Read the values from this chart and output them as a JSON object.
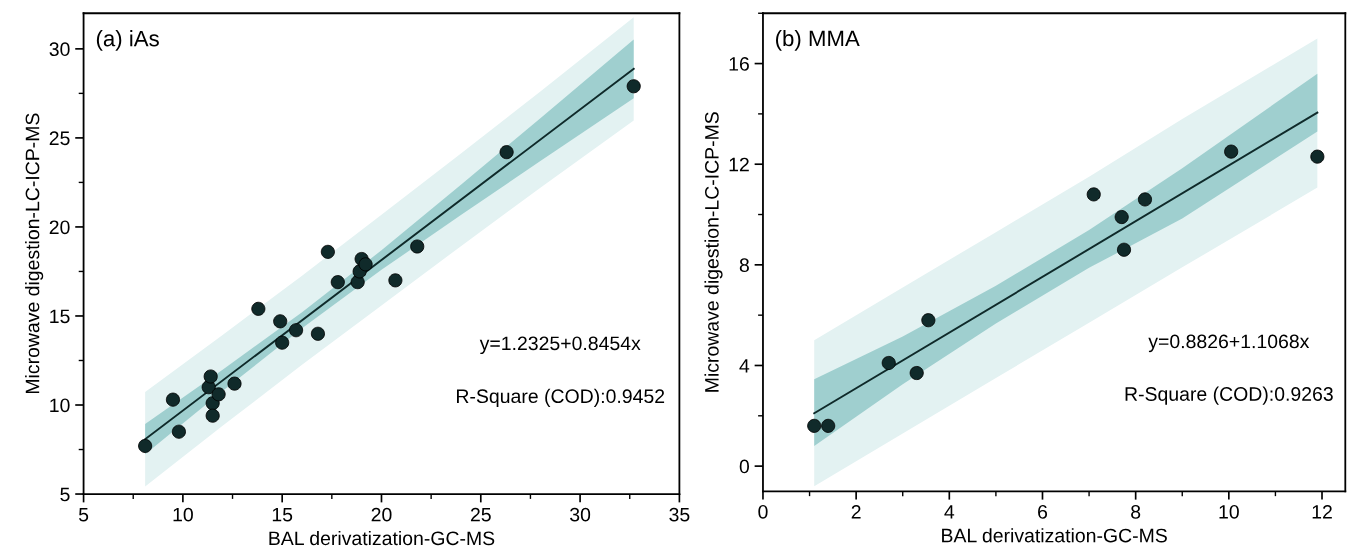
{
  "chart_data": [
    {
      "type": "scatter",
      "title": "(a) iAs",
      "xlabel": "BAL derivatization-GC-MS",
      "ylabel": "Microwave digestion-LC-ICP-MS",
      "annotations": [
        "y=1.2325+0.8454x",
        "R-Square (COD):0.9452"
      ],
      "xlim": [
        5,
        35
      ],
      "ylim": [
        5,
        32
      ],
      "xticks": [
        5,
        10,
        15,
        20,
        25,
        30,
        35
      ],
      "yticks": [
        5,
        10,
        15,
        20,
        25,
        30
      ],
      "grid": false,
      "series": [
        {
          "type": "line",
          "color": "#e3f2f2",
          "x": [
            8.1,
            12,
            16,
            20,
            24,
            28,
            32.7
          ],
          "values": [
            null,
            null,
            null,
            null,
            null,
            null,
            null
          ],
          "lower": [
            5.43,
            8.83,
            12.26,
            15.59,
            18.92,
            22.2,
            25.98
          ],
          "upper": [
            10.73,
            13.93,
            17.26,
            20.69,
            24.12,
            27.6,
            31.78
          ]
        },
        {
          "type": "line",
          "color": "#9fcfcf",
          "x": [
            8.1,
            12,
            16,
            20,
            24,
            28,
            32.7
          ],
          "values": [
            null,
            null,
            null,
            null,
            null,
            null,
            null
          ],
          "lower": [
            7.23,
            10.78,
            14.31,
            17.59,
            20.67,
            23.7,
            27.23
          ],
          "upper": [
            8.93,
            11.98,
            15.21,
            18.69,
            22.37,
            26.1,
            30.53
          ]
        },
        {
          "type": "line",
          "color": "#0f2a2a",
          "line_style": "solid",
          "marker": "none",
          "x": [
            8.1,
            32.7
          ],
          "values": [
            8.08,
            28.88
          ]
        },
        {
          "type": "scatter",
          "marker": "circle",
          "color": "#102a2a",
          "x": [
            8.1,
            9.5,
            9.8,
            11.3,
            11.4,
            11.5,
            11.5,
            11.8,
            12.6,
            13.8,
            14.9,
            15.0,
            15.7,
            16.8,
            17.3,
            17.8,
            18.8,
            18.9,
            19.0,
            19.2,
            20.7,
            21.8,
            26.3,
            32.7
          ],
          "values": [
            7.7,
            10.3,
            8.5,
            11.0,
            11.6,
            10.1,
            9.4,
            10.6,
            11.2,
            15.4,
            14.7,
            13.5,
            14.2,
            14.0,
            18.6,
            16.9,
            16.9,
            17.5,
            18.2,
            17.9,
            17.0,
            18.9,
            24.2,
            27.9
          ]
        }
      ]
    },
    {
      "type": "scatter",
      "title": "(b) MMA",
      "xlabel": "BAL derivatization-GC-MS",
      "ylabel": "Microwave digestion-LC-ICP-MS",
      "annotations": [
        "y=0.8826+1.1068x",
        "R-Square (COD):0.9263"
      ],
      "xlim": [
        0,
        12.5
      ],
      "ylim": [
        -1,
        18
      ],
      "xticks": [
        0,
        2,
        4,
        6,
        8,
        10,
        12
      ],
      "yticks": [
        0,
        4,
        8,
        12,
        16
      ],
      "grid": false,
      "series": [
        {
          "type": "line",
          "color": "#e3f2f2",
          "x": [
            1.1,
            3,
            5,
            7,
            9,
            11.9
          ],
          "values": [
            null,
            null,
            null,
            null,
            null,
            null
          ],
          "lower": [
            -0.8,
            1.3,
            3.5,
            5.7,
            7.9,
            11.07
          ],
          "upper": [
            5.0,
            7.1,
            9.3,
            11.5,
            13.8,
            17.0
          ]
        },
        {
          "type": "line",
          "color": "#9fcfcf",
          "x": [
            1.1,
            3,
            5,
            7,
            9,
            11.9
          ],
          "values": [
            null,
            null,
            null,
            null,
            null,
            null
          ],
          "lower": [
            0.8,
            3.25,
            5.67,
            7.88,
            9.84,
            13.3
          ],
          "upper": [
            3.45,
            5.15,
            7.17,
            9.38,
            11.84,
            15.6
          ]
        },
        {
          "type": "line",
          "color": "#0f2a2a",
          "line_style": "solid",
          "marker": "none",
          "x": [
            1.1,
            11.9
          ],
          "values": [
            2.1,
            14.05
          ]
        },
        {
          "type": "scatter",
          "marker": "circle",
          "color": "#102a2a",
          "x": [
            1.1,
            1.4,
            2.7,
            3.3,
            3.55,
            7.1,
            7.7,
            7.75,
            8.2,
            10.05,
            11.9
          ],
          "values": [
            1.6,
            1.6,
            4.1,
            3.7,
            5.8,
            10.8,
            9.9,
            8.6,
            10.6,
            12.5,
            12.3
          ]
        }
      ]
    }
  ]
}
